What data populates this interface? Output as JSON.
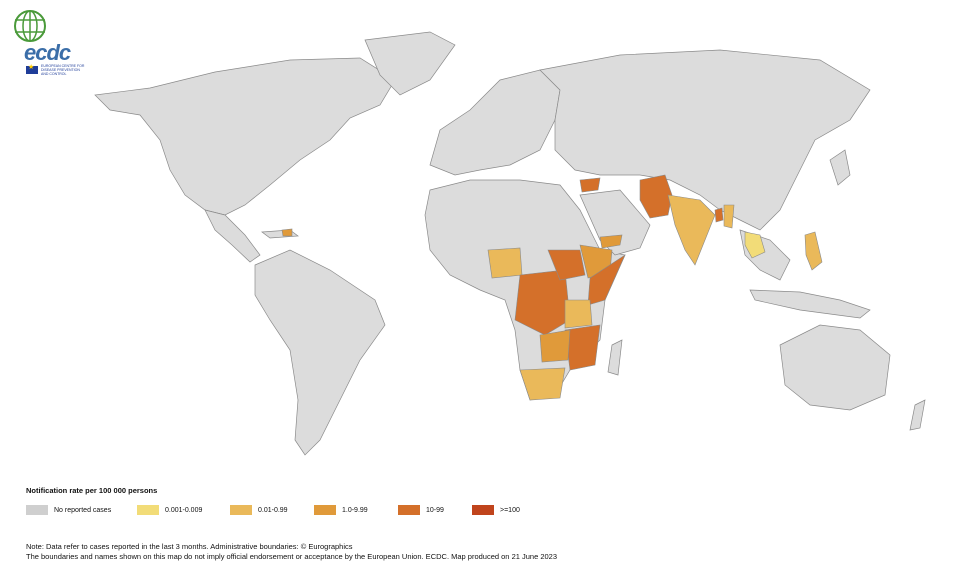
{
  "logo": {
    "wordmark": "ecdc",
    "agency_text": "EUROPEAN CENTRE FOR DISEASE PREVENTION AND CONTROL",
    "icon": "globe-icon"
  },
  "legend": {
    "title": "Notification rate per 100 000 persons",
    "items": [
      {
        "label": "No reported cases",
        "color": "#cfcfcf"
      },
      {
        "label": "0.001-0.009",
        "color": "#f2dc78"
      },
      {
        "label": "0.01-0.99",
        "color": "#eab95a"
      },
      {
        "label": "1.0-9.99",
        "color": "#e09a3a"
      },
      {
        "label": "10-99",
        "color": "#d4702a"
      },
      {
        "label": ">=100",
        "color": "#c0441c"
      }
    ]
  },
  "note": {
    "line1": "Note: Data refer to cases reported in the last 3 months. Administrative boundaries: © Eurographics",
    "line2": "The boundaries and names shown on this map do not imply official endorsement or acceptance by the European Union. ECDC. Map produced on 21 June 2023"
  },
  "colors": {
    "land": "#dcdcdc",
    "border": "#8a8a8a",
    "ocean": "#ffffff"
  }
}
